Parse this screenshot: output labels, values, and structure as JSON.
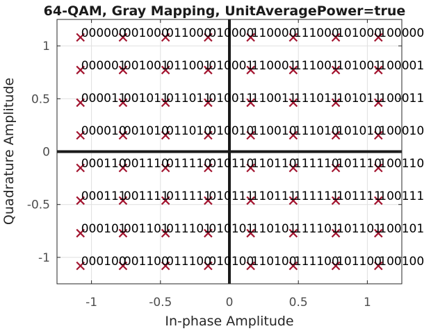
{
  "chart_data": {
    "type": "scatter",
    "title": "64-QAM, Gray Mapping, UnitAveragePower=true",
    "xlabel": "In-phase Amplitude",
    "ylabel": "Quadrature Amplitude",
    "xlim": [
      -1.25,
      1.25
    ],
    "ylim": [
      -1.25,
      1.25
    ],
    "xticks": [
      -1,
      -0.5,
      0,
      0.5,
      1
    ],
    "xtick_labels": [
      "-1",
      "-0.5",
      "0",
      "0.5",
      "1"
    ],
    "yticks": [
      -1,
      -0.5,
      0,
      0.5,
      1
    ],
    "ytick_labels": [
      "-1",
      "-0.5",
      "0",
      "0.5",
      "1"
    ],
    "grid": true,
    "marker": "x",
    "marker_color": "#a2142f",
    "levels": [
      -1.0801,
      -0.7715,
      -0.4629,
      -0.1543,
      0.1543,
      0.4629,
      0.7715,
      1.0801
    ],
    "column_codes": [
      "000",
      "001",
      "011",
      "010",
      "110",
      "111",
      "101",
      "100"
    ],
    "row_codes": [
      "000",
      "001",
      "011",
      "010",
      "110",
      "111",
      "101",
      "100"
    ],
    "points": [
      {
        "x": -1.0801,
        "y": 1.0801,
        "label": "000000"
      },
      {
        "x": -0.7715,
        "y": 1.0801,
        "label": "001000"
      },
      {
        "x": -0.4629,
        "y": 1.0801,
        "label": "011000"
      },
      {
        "x": -0.1543,
        "y": 1.0801,
        "label": "010000"
      },
      {
        "x": 0.1543,
        "y": 1.0801,
        "label": "110000"
      },
      {
        "x": 0.4629,
        "y": 1.0801,
        "label": "111000"
      },
      {
        "x": 0.7715,
        "y": 1.0801,
        "label": "101000"
      },
      {
        "x": 1.0801,
        "y": 1.0801,
        "label": "100000"
      },
      {
        "x": -1.0801,
        "y": 0.7715,
        "label": "000001"
      },
      {
        "x": -0.7715,
        "y": 0.7715,
        "label": "001001"
      },
      {
        "x": -0.4629,
        "y": 0.7715,
        "label": "011001"
      },
      {
        "x": -0.1543,
        "y": 0.7715,
        "label": "010001"
      },
      {
        "x": 0.1543,
        "y": 0.7715,
        "label": "110001"
      },
      {
        "x": 0.4629,
        "y": 0.7715,
        "label": "111001"
      },
      {
        "x": 0.7715,
        "y": 0.7715,
        "label": "101001"
      },
      {
        "x": 1.0801,
        "y": 0.7715,
        "label": "100001"
      },
      {
        "x": -1.0801,
        "y": 0.4629,
        "label": "000011"
      },
      {
        "x": -0.7715,
        "y": 0.4629,
        "label": "001011"
      },
      {
        "x": -0.4629,
        "y": 0.4629,
        "label": "011011"
      },
      {
        "x": -0.1543,
        "y": 0.4629,
        "label": "010011"
      },
      {
        "x": 0.1543,
        "y": 0.4629,
        "label": "110011"
      },
      {
        "x": 0.4629,
        "y": 0.4629,
        "label": "111011"
      },
      {
        "x": 0.7715,
        "y": 0.4629,
        "label": "101011"
      },
      {
        "x": 1.0801,
        "y": 0.4629,
        "label": "100011"
      },
      {
        "x": -1.0801,
        "y": 0.1543,
        "label": "000010"
      },
      {
        "x": -0.7715,
        "y": 0.1543,
        "label": "001010"
      },
      {
        "x": -0.4629,
        "y": 0.1543,
        "label": "011010"
      },
      {
        "x": -0.1543,
        "y": 0.1543,
        "label": "010010"
      },
      {
        "x": 0.1543,
        "y": 0.1543,
        "label": "110010"
      },
      {
        "x": 0.4629,
        "y": 0.1543,
        "label": "111010"
      },
      {
        "x": 0.7715,
        "y": 0.1543,
        "label": "101010"
      },
      {
        "x": 1.0801,
        "y": 0.1543,
        "label": "100010"
      },
      {
        "x": -1.0801,
        "y": -0.1543,
        "label": "000110"
      },
      {
        "x": -0.7715,
        "y": -0.1543,
        "label": "001110"
      },
      {
        "x": -0.4629,
        "y": -0.1543,
        "label": "011110"
      },
      {
        "x": -0.1543,
        "y": -0.1543,
        "label": "010110"
      },
      {
        "x": 0.1543,
        "y": -0.1543,
        "label": "110110"
      },
      {
        "x": 0.4629,
        "y": -0.1543,
        "label": "111110"
      },
      {
        "x": 0.7715,
        "y": -0.1543,
        "label": "101110"
      },
      {
        "x": 1.0801,
        "y": -0.1543,
        "label": "100110"
      },
      {
        "x": -1.0801,
        "y": -0.4629,
        "label": "000111"
      },
      {
        "x": -0.7715,
        "y": -0.4629,
        "label": "001111"
      },
      {
        "x": -0.4629,
        "y": -0.4629,
        "label": "011111"
      },
      {
        "x": -0.1543,
        "y": -0.4629,
        "label": "010111"
      },
      {
        "x": 0.1543,
        "y": -0.4629,
        "label": "110111"
      },
      {
        "x": 0.4629,
        "y": -0.4629,
        "label": "111111"
      },
      {
        "x": 0.7715,
        "y": -0.4629,
        "label": "101111"
      },
      {
        "x": 1.0801,
        "y": -0.4629,
        "label": "100111"
      },
      {
        "x": -1.0801,
        "y": -0.7715,
        "label": "000101"
      },
      {
        "x": -0.7715,
        "y": -0.7715,
        "label": "001101"
      },
      {
        "x": -0.4629,
        "y": -0.7715,
        "label": "011101"
      },
      {
        "x": -0.1543,
        "y": -0.7715,
        "label": "010101"
      },
      {
        "x": 0.1543,
        "y": -0.7715,
        "label": "110101"
      },
      {
        "x": 0.4629,
        "y": -0.7715,
        "label": "111101"
      },
      {
        "x": 0.7715,
        "y": -0.7715,
        "label": "101101"
      },
      {
        "x": 1.0801,
        "y": -0.7715,
        "label": "100101"
      },
      {
        "x": -1.0801,
        "y": -1.0801,
        "label": "000100"
      },
      {
        "x": -0.7715,
        "y": -1.0801,
        "label": "001100"
      },
      {
        "x": -0.4629,
        "y": -1.0801,
        "label": "011100"
      },
      {
        "x": -0.1543,
        "y": -1.0801,
        "label": "010100"
      },
      {
        "x": 0.1543,
        "y": -1.0801,
        "label": "110100"
      },
      {
        "x": 0.4629,
        "y": -1.0801,
        "label": "111100"
      },
      {
        "x": 0.7715,
        "y": -1.0801,
        "label": "101100"
      },
      {
        "x": 1.0801,
        "y": -1.0801,
        "label": "100100"
      }
    ]
  }
}
